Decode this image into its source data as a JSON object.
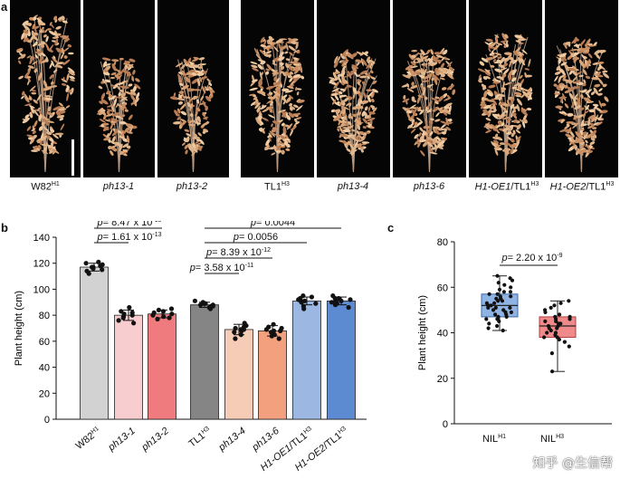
{
  "panels": {
    "a": "a",
    "b": "b",
    "c": "c"
  },
  "photos": [
    {
      "main": "W82",
      "sup": "H1",
      "italic": false,
      "suffix": "",
      "suffix_sup": ""
    },
    {
      "main": "ph13-1",
      "sup": "",
      "italic": true,
      "suffix": "",
      "suffix_sup": ""
    },
    {
      "main": "ph13-2",
      "sup": "",
      "italic": true,
      "suffix": "",
      "suffix_sup": ""
    },
    {
      "main": "TL1",
      "sup": "H3",
      "italic": false,
      "suffix": "",
      "suffix_sup": ""
    },
    {
      "main": "ph13-4",
      "sup": "",
      "italic": true,
      "suffix": "",
      "suffix_sup": ""
    },
    {
      "main": "ph13-6",
      "sup": "",
      "italic": true,
      "suffix": "",
      "suffix_sup": ""
    },
    {
      "main": "H1-OE1",
      "sup": "",
      "italic": true,
      "suffix": "/TL1",
      "suffix_sup": "H3"
    },
    {
      "main": "H1-OE2",
      "sup": "",
      "italic": true,
      "suffix": "/TL1",
      "suffix_sup": "H3"
    }
  ],
  "chart_data": [
    {
      "type": "bar",
      "panel": "b",
      "ylabel": "Plant height (cm)",
      "ylim": [
        0,
        140
      ],
      "yticks": [
        0,
        20,
        40,
        60,
        80,
        100,
        120,
        140
      ],
      "categories": [
        {
          "main": "W82",
          "sup": "H1",
          "italic": false,
          "suffix": "",
          "suffix_sup": ""
        },
        {
          "main": "ph13-1",
          "sup": "",
          "italic": true,
          "suffix": "",
          "suffix_sup": ""
        },
        {
          "main": "ph13-2",
          "sup": "",
          "italic": true,
          "suffix": "",
          "suffix_sup": ""
        },
        {
          "main": "TL1",
          "sup": "H3",
          "italic": false,
          "suffix": "",
          "suffix_sup": ""
        },
        {
          "main": "ph13-4",
          "sup": "",
          "italic": true,
          "suffix": "",
          "suffix_sup": ""
        },
        {
          "main": "ph13-6",
          "sup": "",
          "italic": true,
          "suffix": "",
          "suffix_sup": ""
        },
        {
          "main": "H1-OE1",
          "sup": "",
          "italic": true,
          "suffix": "/TL1",
          "suffix_sup": "H3"
        },
        {
          "main": "H1-OE2",
          "sup": "",
          "italic": true,
          "suffix": "/TL1",
          "suffix_sup": "H3"
        }
      ],
      "values": [
        117,
        80,
        81,
        88,
        69,
        68,
        91,
        91
      ],
      "errors": [
        3,
        4,
        3,
        2,
        4,
        4,
        3,
        3
      ],
      "colors": [
        "#d2d2d2",
        "#f7cdd0",
        "#ef7b7e",
        "#858585",
        "#f7ccb7",
        "#f3a07f",
        "#9cb7e1",
        "#5d8bd2"
      ],
      "points": [
        [
          112,
          114,
          115,
          116,
          117,
          117,
          118,
          119,
          120,
          121
        ],
        [
          74,
          76,
          78,
          79,
          80,
          81,
          82,
          83,
          86
        ],
        [
          77,
          78,
          79,
          80,
          81,
          82,
          83,
          84,
          85
        ],
        [
          85,
          86,
          87,
          87,
          88,
          88,
          89,
          89,
          90,
          91
        ],
        [
          62,
          65,
          67,
          68,
          69,
          69,
          70,
          71,
          72,
          74
        ],
        [
          62,
          64,
          65,
          67,
          68,
          68,
          69,
          70,
          71,
          73
        ],
        [
          85,
          87,
          89,
          90,
          91,
          91,
          92,
          93,
          94,
          95
        ],
        [
          86,
          88,
          89,
          90,
          91,
          91,
          92,
          93,
          93,
          95
        ]
      ],
      "comparisons": [
        {
          "from": 0,
          "to": 2,
          "prefix": "p",
          "text": "= 8.47 x 10",
          "exp": "-15"
        },
        {
          "from": 0,
          "to": 1,
          "prefix": "p",
          "text": "= 1.61 x 10",
          "exp": "-13"
        },
        {
          "from": 3,
          "to": 7,
          "prefix": "p",
          "text": "= 0.0044",
          "exp": ""
        },
        {
          "from": 3,
          "to": 6,
          "prefix": "p",
          "text": "= 0.0056",
          "exp": ""
        },
        {
          "from": 3,
          "to": 5,
          "prefix": "p",
          "text": "= 8.39 x 10",
          "exp": "-12"
        },
        {
          "from": 3,
          "to": 4,
          "prefix": "p",
          "text": "= 3.58 x 10",
          "exp": "-11"
        }
      ]
    },
    {
      "type": "box",
      "panel": "c",
      "ylabel": "Plant height (cm)",
      "ylim": [
        0,
        80
      ],
      "yticks": [
        0,
        20,
        40,
        60,
        80
      ],
      "categories": [
        {
          "main": "NIL",
          "sup": "H1"
        },
        {
          "main": "NIL",
          "sup": "H3"
        }
      ],
      "boxes": [
        {
          "min": 41,
          "q1": 47,
          "median": 52,
          "q3": 57,
          "max": 65,
          "fill": "#8fb4e3",
          "stroke": "#3c6aa8"
        },
        {
          "min": 23,
          "q1": 38,
          "median": 43,
          "q3": 47,
          "max": 54,
          "fill": "#f08a8a",
          "stroke": "#b04040"
        }
      ],
      "points": [
        [
          41,
          42,
          43,
          44,
          45,
          46,
          46,
          47,
          47,
          48,
          48,
          49,
          49,
          50,
          50,
          51,
          51,
          51,
          52,
          52,
          52,
          53,
          53,
          54,
          54,
          55,
          55,
          56,
          56,
          57,
          57,
          58,
          58,
          59,
          60,
          61,
          62,
          63,
          64,
          65
        ],
        [
          23,
          31,
          34,
          36,
          37,
          38,
          38,
          39,
          40,
          40,
          41,
          42,
          42,
          43,
          43,
          44,
          44,
          45,
          45,
          46,
          46,
          47,
          47,
          48,
          49,
          50,
          51,
          52,
          53,
          54
        ]
      ],
      "comparison": {
        "from": 0,
        "to": 1,
        "prefix": "p",
        "text": "= 2.20 x 10",
        "exp": "-9"
      }
    }
  ],
  "watermark": "知乎 @生信帮"
}
